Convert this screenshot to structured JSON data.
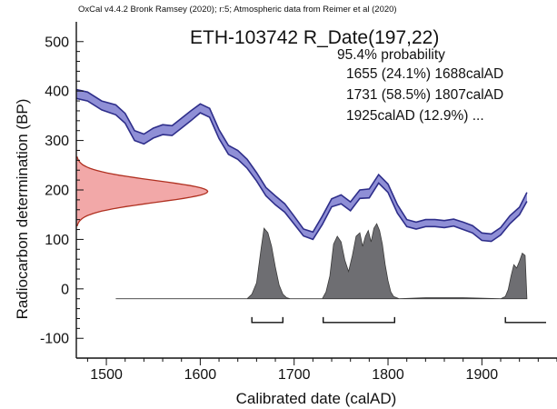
{
  "header": "OxCal v4.4.2 Bronk Ramsey (2020); r:5; Atmospheric data from Reimer et al (2020)",
  "title": "ETH-103742 R_Date(197,22)",
  "probability_label": "95.4% probability",
  "ranges": [
    "1655 (24.1%) 1688calAD",
    "1731 (58.5%) 1807calAD",
    "1925calAD (12.9%) ..."
  ],
  "colors": {
    "calibration_band": "#8f8fd6",
    "calibration_edge": "#2e2e8a",
    "radiocarbon_fill": "#f2a8a8",
    "radiocarbon_edge": "#b03020",
    "posterior_fill": "#6e6e72",
    "posterior_edge": "#3a3a3a"
  },
  "chart_data": {
    "type": "area",
    "title": "ETH-103742 R_Date(197,22)",
    "xlabel": "Calibrated date (calAD)",
    "ylabel": "Radiocarbon determination (BP)",
    "xlim": [
      1468,
      1980
    ],
    "ylim": [
      -140,
      540
    ],
    "x_ticks": [
      1500,
      1600,
      1700,
      1800,
      1900
    ],
    "y_ticks": [
      -100,
      0,
      100,
      200,
      300,
      400,
      500
    ],
    "radiocarbon_date": {
      "mean_bp": 197,
      "sigma": 22
    },
    "calibration_curve": {
      "x": [
        1468,
        1480,
        1495,
        1510,
        1520,
        1530,
        1540,
        1550,
        1560,
        1570,
        1580,
        1590,
        1600,
        1610,
        1620,
        1630,
        1640,
        1650,
        1660,
        1670,
        1680,
        1690,
        1700,
        1710,
        1720,
        1730,
        1740,
        1750,
        1760,
        1770,
        1780,
        1790,
        1800,
        1810,
        1820,
        1830,
        1840,
        1850,
        1860,
        1870,
        1880,
        1890,
        1900,
        1910,
        1920,
        1930,
        1940,
        1948
      ],
      "upper": [
        403,
        398,
        380,
        372,
        355,
        320,
        313,
        325,
        332,
        330,
        345,
        360,
        374,
        365,
        322,
        290,
        280,
        262,
        235,
        205,
        188,
        172,
        147,
        121,
        115,
        147,
        182,
        190,
        176,
        200,
        202,
        231,
        212,
        170,
        140,
        135,
        140,
        140,
        138,
        141,
        135,
        128,
        113,
        111,
        124,
        148,
        165,
        195
      ],
      "lower": [
        385,
        380,
        362,
        352,
        335,
        300,
        293,
        305,
        312,
        310,
        325,
        340,
        356,
        347,
        304,
        272,
        262,
        244,
        218,
        188,
        170,
        155,
        131,
        107,
        100,
        130,
        166,
        172,
        158,
        183,
        184,
        214,
        195,
        153,
        126,
        121,
        126,
        126,
        124,
        127,
        120,
        113,
        98,
        96,
        109,
        132,
        150,
        177
      ]
    },
    "posterior_distribution": {
      "x": [
        1510,
        1650,
        1655,
        1660,
        1665,
        1668,
        1672,
        1676,
        1680,
        1684,
        1688,
        1692,
        1696,
        1700,
        1730,
        1734,
        1738,
        1742,
        1746,
        1750,
        1754,
        1758,
        1762,
        1766,
        1770,
        1773,
        1776,
        1779,
        1782,
        1785,
        1788,
        1791,
        1794,
        1797,
        1800,
        1803,
        1806,
        1809,
        1812,
        1840,
        1880,
        1920,
        1925,
        1928,
        1931,
        1934,
        1937,
        1940,
        1943,
        1946,
        1948
      ],
      "probability": [
        0,
        0,
        0.04,
        0.14,
        0.45,
        0.62,
        0.58,
        0.46,
        0.28,
        0.12,
        0.04,
        0.01,
        0,
        0,
        0,
        0.06,
        0.2,
        0.48,
        0.55,
        0.5,
        0.34,
        0.24,
        0.38,
        0.55,
        0.58,
        0.46,
        0.55,
        0.6,
        0.5,
        0.62,
        0.66,
        0.6,
        0.48,
        0.3,
        0.16,
        0.06,
        0.02,
        0.01,
        0,
        0.01,
        0.01,
        0,
        0.02,
        0.08,
        0.2,
        0.3,
        0.27,
        0.33,
        0.4,
        0.38,
        0
      ]
    },
    "hpd_ranges": [
      [
        1655,
        1688
      ],
      [
        1731,
        1807
      ],
      [
        1925,
        1980
      ]
    ]
  }
}
